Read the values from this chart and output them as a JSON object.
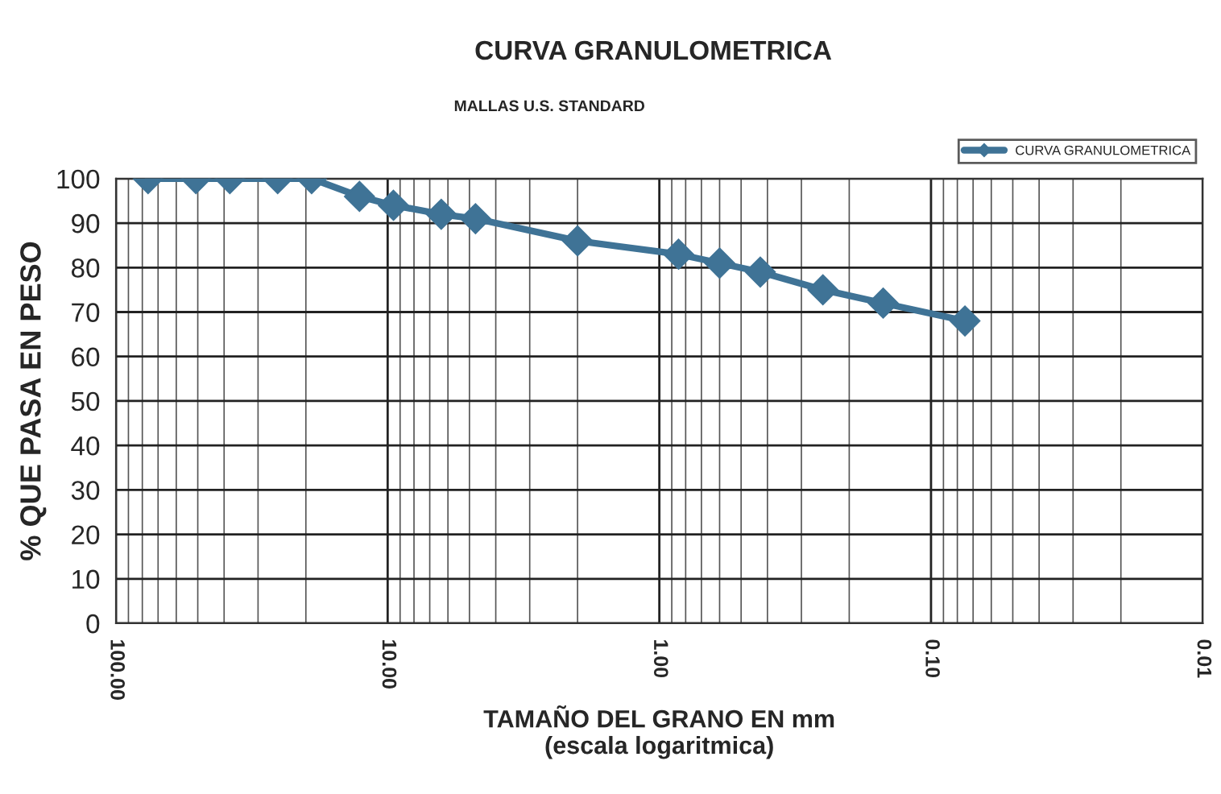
{
  "chart_data": {
    "type": "line",
    "title": "CURVA GRANULOMETRICA",
    "subtitle": "MALLAS U.S. STANDARD",
    "xlabel": "TAMAÑO DEL GRANO EN mm\n(escala logaritmica)",
    "ylabel": "% QUE PASA EN PESO",
    "x": [
      76.2,
      50.8,
      38.1,
      25.4,
      19.05,
      12.7,
      9.525,
      6.35,
      4.75,
      2.0,
      0.85,
      0.6,
      0.425,
      0.25,
      0.15,
      0.075
    ],
    "series": [
      {
        "name": "CURVA GRANULOMETRICA",
        "color": "#3f7396",
        "values": [
          100,
          100,
          100,
          100,
          100,
          96,
          94,
          92,
          91,
          86,
          83,
          81,
          79,
          75,
          72,
          68
        ]
      }
    ],
    "log": "x",
    "xlim": [
      100,
      0.01
    ],
    "xticks": [
      {
        "value": 100,
        "label": "100.00"
      },
      {
        "value": 10,
        "label": "10.00"
      },
      {
        "value": 1,
        "label": "1.00"
      },
      {
        "value": 0.1,
        "label": "0.10"
      },
      {
        "value": 0.01,
        "label": "0.01"
      }
    ],
    "ylim": [
      0,
      100
    ],
    "yticks": [
      0,
      10,
      20,
      30,
      40,
      50,
      60,
      70,
      80,
      90,
      100
    ],
    "grid": true,
    "legend": "top right",
    "marker": "diamond",
    "line_style": "solid"
  }
}
